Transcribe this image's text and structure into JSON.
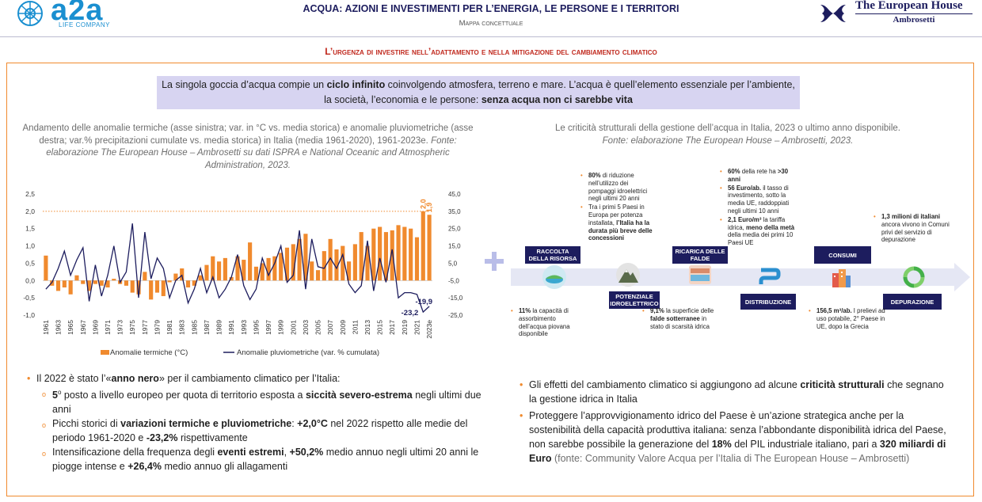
{
  "header": {
    "logo_left_word": "a2a",
    "logo_left_sub": "LIFE COMPANY",
    "title": "ACQUA: AZIONI E INVESTIMENTI PER L’ENERGIA, LE PERSONE E I TERRITORI",
    "subtitle": "Mappa concettuale",
    "logo_right_line1": "The European House",
    "logo_right_line2": "Ambrosetti"
  },
  "section_title": "L’urgenza di investire nell’adattamento e nella mitigazione del cambiamento climatico",
  "intro": {
    "p1": "La singola goccia d’acqua compie un ",
    "b1": "ciclo infinito",
    "p2": " coinvolgendo atmosfera, terreno e mare. L’acqua è quell’elemento essenziale per l’ambiente, la società, l’economia e le persone: ",
    "b2": "senza acqua non ci sarebbe vita"
  },
  "left_caption": {
    "text": "Andamento delle anomalie termiche (asse sinistra; var. in °C vs. media storica) e anomalie pluviometriche (asse destra; var.% precipitazioni cumulate vs. media storica) in Italia (media 1961-2020), 1961-2023e. ",
    "source": "Fonte: elaborazione The European House – Ambrosetti su dati ISPRA e National Oceanic and Atmospheric Administration, 2023."
  },
  "right_caption": {
    "text": "Le criticità strutturali della gestione dell’acqua in Italia, 2023 o ultimo anno disponibile.",
    "source": "Fonte: elaborazione The European House – Ambrosetti, 2023."
  },
  "chart_data": {
    "type": "bar",
    "title": "",
    "xlabel": "",
    "ylabel": "",
    "ylim": [
      -1.0,
      2.5
    ],
    "y2lim": [
      -25.0,
      45.0
    ],
    "y_ticks": [
      "-1,0",
      "-0,5",
      "0,0",
      "0,5",
      "1,0",
      "1,5",
      "2,0",
      "2,5"
    ],
    "y2_ticks": [
      "-25,0",
      "-15,0",
      "-5,0",
      "5,0",
      "15,0",
      "25,0",
      "35,0",
      "45,0"
    ],
    "x_tick_labels": [
      "1961",
      "1963",
      "1965",
      "1967",
      "1969",
      "1971",
      "1973",
      "1975",
      "1977",
      "1979",
      "1981",
      "1983",
      "1985",
      "1987",
      "1989",
      "1991",
      "1993",
      "1995",
      "1997",
      "1999",
      "2001",
      "2003",
      "2005",
      "2007",
      "2009",
      "2011",
      "2013",
      "2015",
      "2017",
      "2019",
      "2021",
      "2023e"
    ],
    "categories": [
      "1961",
      "1962",
      "1963",
      "1964",
      "1965",
      "1966",
      "1967",
      "1968",
      "1969",
      "1970",
      "1971",
      "1972",
      "1973",
      "1974",
      "1975",
      "1976",
      "1977",
      "1978",
      "1979",
      "1980",
      "1981",
      "1982",
      "1983",
      "1984",
      "1985",
      "1986",
      "1987",
      "1988",
      "1989",
      "1990",
      "1991",
      "1992",
      "1993",
      "1994",
      "1995",
      "1996",
      "1997",
      "1998",
      "1999",
      "2000",
      "2001",
      "2002",
      "2003",
      "2004",
      "2005",
      "2006",
      "2007",
      "2008",
      "2009",
      "2010",
      "2011",
      "2012",
      "2013",
      "2014",
      "2015",
      "2016",
      "2017",
      "2018",
      "2019",
      "2020",
      "2021",
      "2022",
      "2023e"
    ],
    "series": [
      {
        "name": "Anomalie termiche (°C)",
        "type": "bar",
        "axis": "left",
        "color": "#f08a2e",
        "values": [
          0.72,
          -0.15,
          -0.3,
          -0.2,
          -0.4,
          0.15,
          -0.1,
          -0.3,
          -0.1,
          -0.15,
          -0.2,
          0.05,
          -0.1,
          -0.15,
          -0.35,
          -0.4,
          0.25,
          -0.55,
          -0.35,
          -0.45,
          -0.05,
          0.2,
          0.35,
          -0.2,
          -0.15,
          0.15,
          0.45,
          0.7,
          0.55,
          0.65,
          0.1,
          0.7,
          0.6,
          1.1,
          0.4,
          0.5,
          0.65,
          0.7,
          0.8,
          0.95,
          1.05,
          1.2,
          1.35,
          0.55,
          0.3,
          0.85,
          1.2,
          0.9,
          1.0,
          0.55,
          1.05,
          1.4,
          1.0,
          1.5,
          1.55,
          1.4,
          1.45,
          1.6,
          1.55,
          1.5,
          1.25,
          2.0,
          1.9
        ]
      },
      {
        "name": "Anomalie pluviometriche (var. % cumulata)",
        "type": "line",
        "axis": "right",
        "color": "#1d1d5e",
        "values": [
          -10,
          -6,
          2,
          12,
          -2,
          7,
          14,
          -17,
          4,
          -14,
          -2,
          15,
          -6,
          0,
          28,
          -15,
          23,
          -4,
          8,
          2,
          -15,
          -5,
          -2,
          -18,
          -10,
          2,
          -12,
          -3,
          -15,
          -10,
          -3,
          10,
          -8,
          -16,
          -10,
          8,
          -2,
          5,
          15,
          -6,
          -2,
          24,
          -10,
          19,
          3,
          2,
          8,
          2,
          10,
          -7,
          -12,
          -8,
          18,
          -11,
          8,
          -6,
          13,
          -15,
          -12,
          -12,
          -13,
          -23.2,
          -19.9
        ]
      }
    ],
    "data_labels": [
      {
        "series": "Anomalie termiche (°C)",
        "category": "2022",
        "text": "2,0"
      },
      {
        "series": "Anomalie termiche (°C)",
        "category": "2023e",
        "text": "1,9"
      },
      {
        "series": "Anomalie pluviometriche (var. % cumulata)",
        "category": "2022",
        "text": "-23,2"
      },
      {
        "series": "Anomalie pluviometriche (var. % cumulata)",
        "category": "2023e",
        "text": "-19,9"
      }
    ],
    "reference_line": {
      "y": 2.0,
      "style": "dotted",
      "color": "#f08a2e"
    },
    "legend_position": "bottom",
    "grid": false
  },
  "flow": {
    "stages": [
      {
        "label": "RACCOLTA DELLA RISORSA",
        "icon": "lake-icon"
      },
      {
        "label": "POTENZIALE IDROELETTRICO",
        "icon": "mountain-icon"
      },
      {
        "label": "RICARICA DELLE FALDE",
        "icon": "groundwater-icon"
      },
      {
        "label": "DISTRIBUZIONE",
        "icon": "pipe-icon"
      },
      {
        "label": "CONSUMI",
        "icon": "buildings-icon"
      },
      {
        "label": "DEPURAZIONE",
        "icon": "recycle-icon"
      }
    ],
    "notes": {
      "raccolta": [
        "11%",
        " la capacità di assorbimento dell’acqua piovana disponibile"
      ],
      "idro_1": [
        "80%",
        " di riduzione nell’utilizzo dei pompaggi idroelettrici negli ultimi 20 anni"
      ],
      "idro_2": [
        "Tra i primi 5 Paesi in Europa per potenza installata, ",
        "l’Italia ha la durata più breve delle concessioni"
      ],
      "falde": [
        "9,1%",
        " la superficie delle ",
        "falde sotterranee",
        " in stato di scarsità idrica"
      ],
      "distr_1": [
        "60%",
        " della rete ha ",
        ">30 anni"
      ],
      "distr_2": [
        "56 Euro/ab.",
        " il tasso di investimento, sotto la media UE, raddoppiati negli ultimi 10 anni"
      ],
      "distr_3": [
        "2,1 Euro/m³",
        " la tariffa idrica, ",
        "meno della metà",
        " della media dei primi 10 Paesi UE"
      ],
      "consumi": [
        "156,5 m³/ab.",
        " I prelievi ad uso potabile, 2° Paese in UE, dopo la Grecia"
      ],
      "depurazione": [
        "1,3 milioni di italiani",
        " ancora vivono in Comuni privi del servizio di depurazione"
      ]
    }
  },
  "left_bullets": {
    "main": [
      "Il 2022 è stato l’«",
      "anno nero",
      "» per il cambiamento climatico per l’Italia:"
    ],
    "sub1": [
      "5",
      "o",
      " posto a livello europeo per quota di territorio esposta a ",
      "siccità severo-estrema",
      " negli ultimi due anni"
    ],
    "sub2": [
      "Picchi storici di ",
      "variazioni termiche e pluviometriche",
      ": ",
      "+2,0°C",
      " nel 2022 rispetto alle medie del periodo 1961-2020 e ",
      "-23,2%",
      " rispettivamente"
    ],
    "sub3": [
      "Intensificazione della frequenza degli ",
      "eventi estremi",
      ", ",
      "+50,2%",
      " medio annuo negli ultimi 20 anni le piogge intense e ",
      "+26,4%",
      " medio annuo gli allagamenti"
    ]
  },
  "right_bullets": {
    "b1": [
      "Gli effetti del cambiamento climatico si aggiungono ad alcune ",
      "criticità strutturali",
      " che segnano la gestione idrica in Italia"
    ],
    "b2": [
      "Proteggere l’approvvigionamento idrico del Paese è un’azione strategica anche per la sostenibilità della capacità produttiva italiana: senza l’abbondante disponibilità idrica del Paese, non sarebbe possibile la generazione del ",
      "18%",
      " del PIL industriale italiano, pari a ",
      "320 miliardi di Euro",
      " (fonte: Community Valore Acqua per l’Italia di The European House – Ambrosetti)"
    ]
  },
  "colors": {
    "accent_orange": "#f08a2e",
    "navy": "#1d1d5e",
    "title_red": "#c0281d",
    "intro_bg": "#d7d4f1",
    "a2a_blue": "#1a8fd0"
  }
}
